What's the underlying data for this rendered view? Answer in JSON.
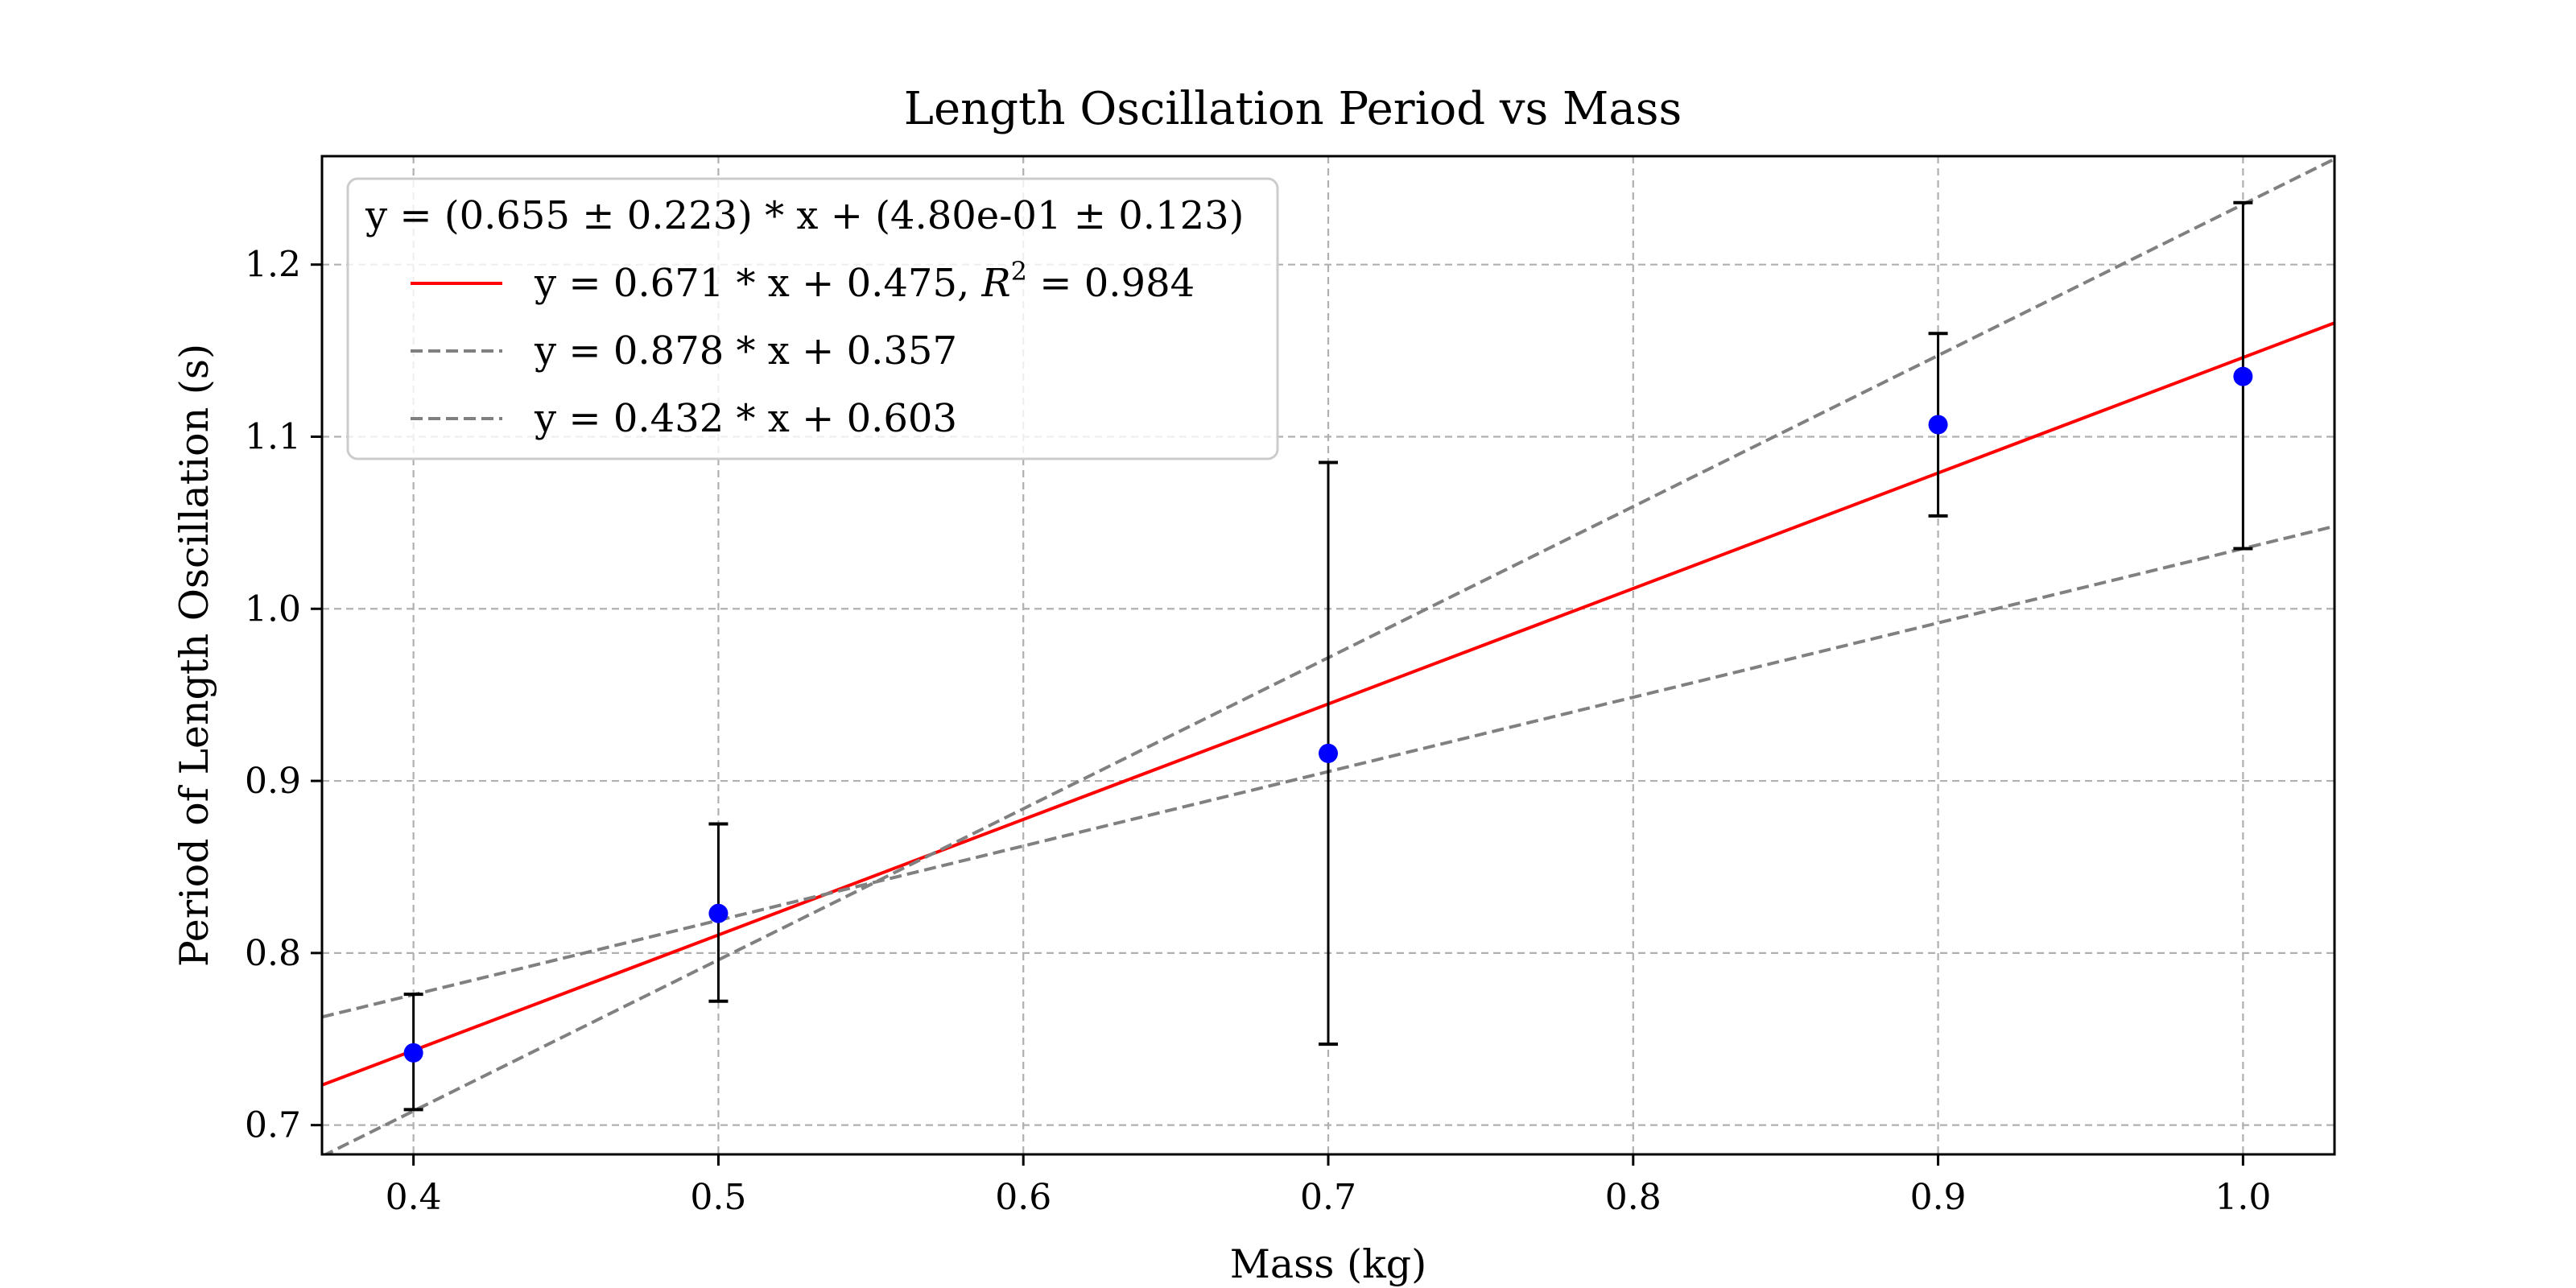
{
  "chart_data": {
    "type": "scatter",
    "title": "Length Oscillation Period vs Mass",
    "xlabel": "Mass (kg)",
    "ylabel": "Period of Length Oscillation (s)",
    "xlim": [
      0.37,
      1.03
    ],
    "ylim": [
      0.683,
      1.263
    ],
    "xticks": [
      0.4,
      0.5,
      0.6,
      0.7,
      0.8,
      0.9,
      1.0
    ],
    "xtick_labels": [
      "0.4",
      "0.5",
      "0.6",
      "0.7",
      "0.8",
      "0.9",
      "1.0"
    ],
    "yticks": [
      0.7,
      0.8,
      0.9,
      1.0,
      1.1,
      1.2
    ],
    "ytick_labels": [
      "0.7",
      "0.8",
      "0.9",
      "1.0",
      "1.1",
      "1.2"
    ],
    "grid": true,
    "legend_position": "top-left",
    "legend_header": "y = (0.655 ± 0.223) * x + (4.80e-01 ± 0.123)",
    "points": {
      "x": [
        0.4,
        0.5,
        0.7,
        0.9,
        1.0
      ],
      "y": [
        0.742,
        0.823,
        0.916,
        1.107,
        1.135
      ],
      "yerr_low": [
        0.709,
        0.772,
        0.747,
        1.054,
        1.035
      ],
      "yerr_high": [
        0.776,
        0.875,
        1.085,
        1.16,
        1.236
      ],
      "color": "#0000ff",
      "errorbar_color": "#000000"
    },
    "lines": [
      {
        "label": "y = 0.671 * x + 0.475, R^2 = 0.984",
        "slope": 0.671,
        "intercept": 0.475,
        "color": "#ff0000",
        "style": "solid"
      },
      {
        "label": "y = 0.878 * x + 0.357",
        "slope": 0.878,
        "intercept": 0.357,
        "color": "#808080",
        "style": "dashed"
      },
      {
        "label": "y = 0.432 * x + 0.603",
        "slope": 0.432,
        "intercept": 0.603,
        "color": "#808080",
        "style": "dashed"
      }
    ]
  }
}
